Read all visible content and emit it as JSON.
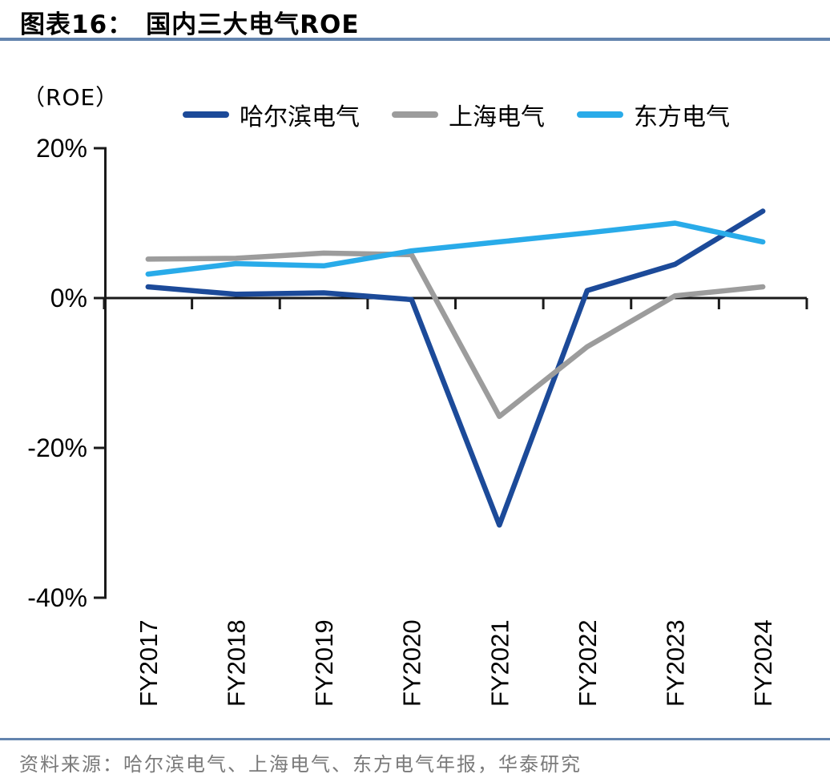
{
  "header": {
    "figure_label": "图表16：",
    "title": "国内三大电气ROE"
  },
  "chart_data": {
    "type": "line",
    "unit_label": "（ROE）",
    "categories": [
      "FY2017",
      "FY2018",
      "FY2019",
      "FY2020",
      "FY2021",
      "FY2022",
      "FY2023",
      "FY2024"
    ],
    "series": [
      {
        "name": "哈尔滨电气",
        "color": "#1C4A99",
        "values": [
          1.5,
          0.5,
          0.7,
          -0.2,
          -30.3,
          1.0,
          4.5,
          11.6
        ]
      },
      {
        "name": "上海电气",
        "color": "#9C9C9C",
        "values": [
          5.2,
          5.3,
          6.0,
          5.8,
          -15.8,
          -6.5,
          0.3,
          1.5
        ]
      },
      {
        "name": "东方电气",
        "color": "#29ABE9",
        "values": [
          3.2,
          4.6,
          4.3,
          6.3,
          7.5,
          8.7,
          10.0,
          7.5
        ]
      }
    ],
    "y_ticks": [
      "20%",
      "0%",
      "-20%",
      "-40%"
    ],
    "y_tick_values": [
      20,
      0,
      -20,
      -40
    ],
    "ylim": [
      -40,
      20
    ],
    "x_axis_position": "zero-line",
    "legend_position": "top",
    "grid": false
  },
  "footer": {
    "source": "资料来源：哈尔滨电气、上海电气、东方电气年报，华泰研究"
  },
  "style": {
    "accent_rule_color": "#6384AE",
    "axis_color": "#1A1A1A",
    "source_text_color": "#7A7A7A"
  }
}
